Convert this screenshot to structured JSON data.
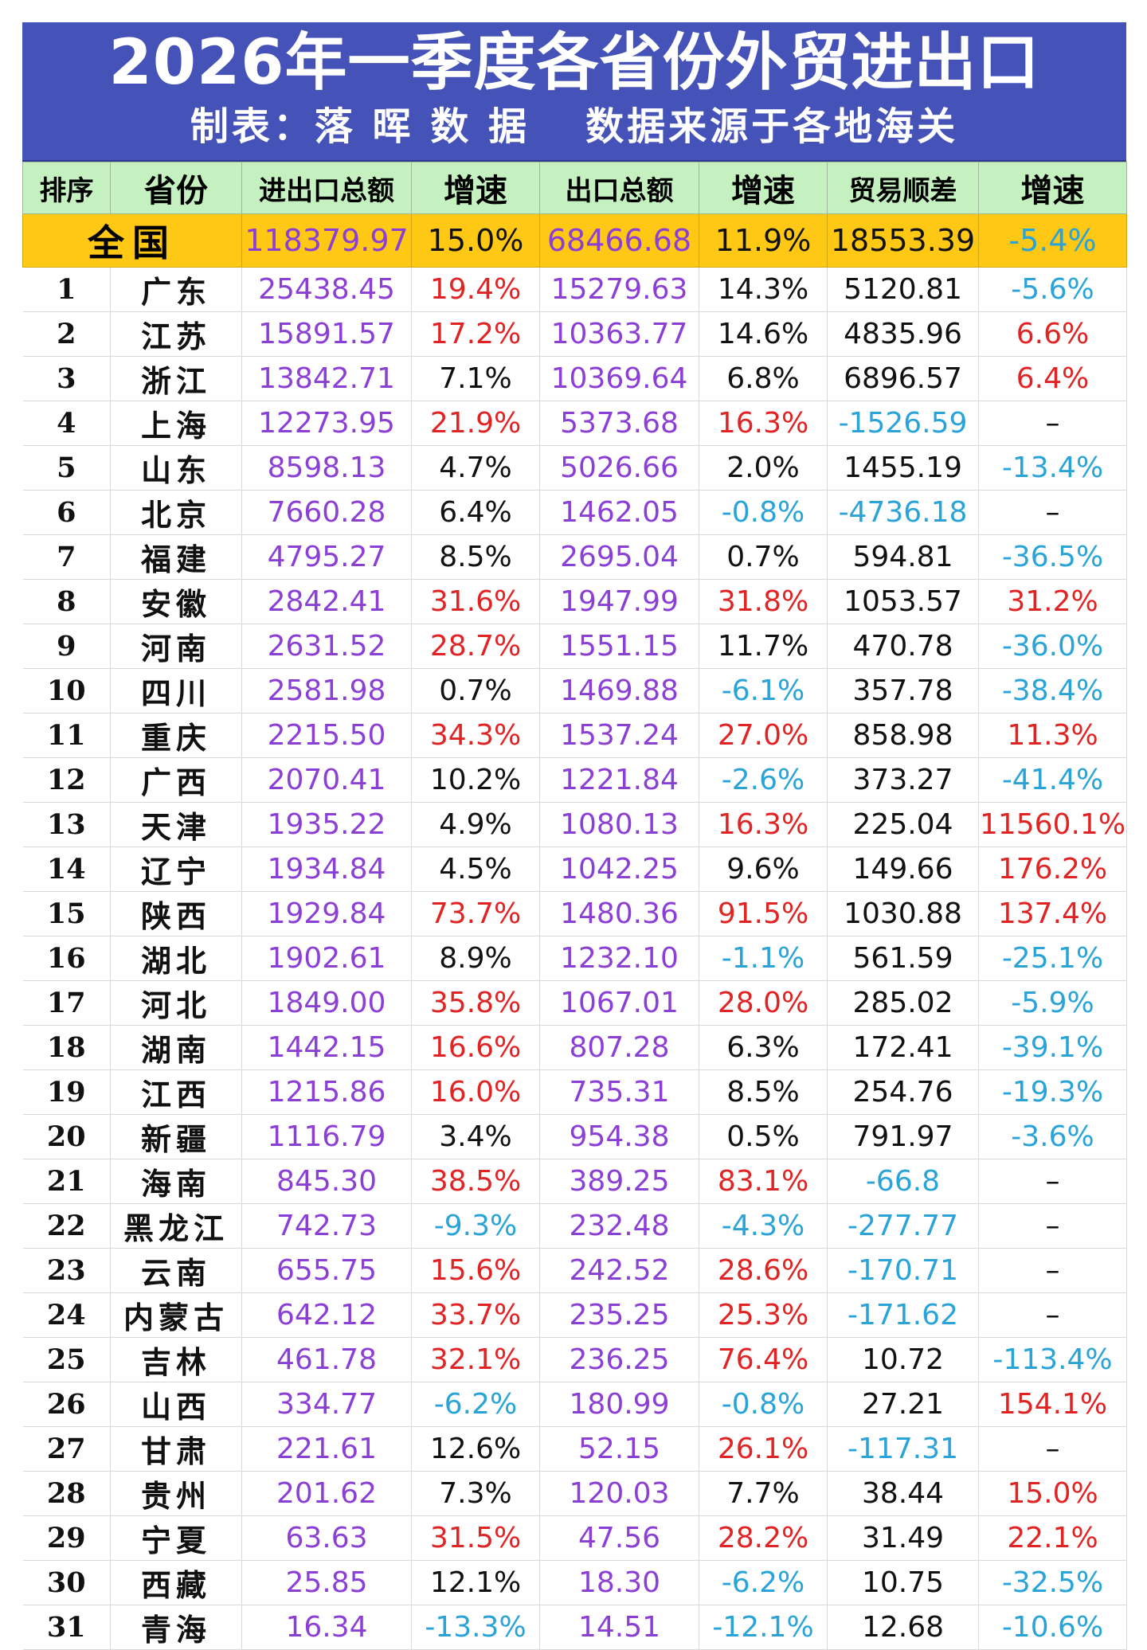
{
  "title": "2026年一季度各省份外贸进出口",
  "subtitle_left": "制表：落 晖 数 据",
  "subtitle_right": "数据来源于各地海关",
  "headers": [
    "排序",
    "省份",
    "进出口总额",
    "增速",
    "出口总额",
    "增速",
    "贸易顺差",
    "增速"
  ],
  "national": {
    "name": "全国",
    "total": "118379.97",
    "total_growth": "15.0%",
    "export": "68466.68",
    "export_growth": "11.9%",
    "surplus": "18553.39",
    "surplus_growth": "-5.4%"
  },
  "rows": [
    {
      "rank": "1",
      "name": "广东",
      "total": "25438.45",
      "tg": "19.4%",
      "exp": "15279.63",
      "eg": "14.3%",
      "sur": "5120.81",
      "sg": "-5.6%"
    },
    {
      "rank": "2",
      "name": "江苏",
      "total": "15891.57",
      "tg": "17.2%",
      "exp": "10363.77",
      "eg": "14.6%",
      "sur": "4835.96",
      "sg": "6.6%"
    },
    {
      "rank": "3",
      "name": "浙江",
      "total": "13842.71",
      "tg": "7.1%",
      "exp": "10369.64",
      "eg": "6.8%",
      "sur": "6896.57",
      "sg": "6.4%"
    },
    {
      "rank": "4",
      "name": "上海",
      "total": "12273.95",
      "tg": "21.9%",
      "exp": "5373.68",
      "eg": "16.3%",
      "sur": "-1526.59",
      "sg": "–"
    },
    {
      "rank": "5",
      "name": "山东",
      "total": "8598.13",
      "tg": "4.7%",
      "exp": "5026.66",
      "eg": "2.0%",
      "sur": "1455.19",
      "sg": "-13.4%"
    },
    {
      "rank": "6",
      "name": "北京",
      "total": "7660.28",
      "tg": "6.4%",
      "exp": "1462.05",
      "eg": "-0.8%",
      "sur": "-4736.18",
      "sg": "–"
    },
    {
      "rank": "7",
      "name": "福建",
      "total": "4795.27",
      "tg": "8.5%",
      "exp": "2695.04",
      "eg": "0.7%",
      "sur": "594.81",
      "sg": "-36.5%"
    },
    {
      "rank": "8",
      "name": "安徽",
      "total": "2842.41",
      "tg": "31.6%",
      "exp": "1947.99",
      "eg": "31.8%",
      "sur": "1053.57",
      "sg": "31.2%"
    },
    {
      "rank": "9",
      "name": "河南",
      "total": "2631.52",
      "tg": "28.7%",
      "exp": "1551.15",
      "eg": "11.7%",
      "sur": "470.78",
      "sg": "-36.0%"
    },
    {
      "rank": "10",
      "name": "四川",
      "total": "2581.98",
      "tg": "0.7%",
      "exp": "1469.88",
      "eg": "-6.1%",
      "sur": "357.78",
      "sg": "-38.4%"
    },
    {
      "rank": "11",
      "name": "重庆",
      "total": "2215.50",
      "tg": "34.3%",
      "exp": "1537.24",
      "eg": "27.0%",
      "sur": "858.98",
      "sg": "11.3%"
    },
    {
      "rank": "12",
      "name": "广西",
      "total": "2070.41",
      "tg": "10.2%",
      "exp": "1221.84",
      "eg": "-2.6%",
      "sur": "373.27",
      "sg": "-41.4%"
    },
    {
      "rank": "13",
      "name": "天津",
      "total": "1935.22",
      "tg": "4.9%",
      "exp": "1080.13",
      "eg": "16.3%",
      "sur": "225.04",
      "sg": "11560.1%"
    },
    {
      "rank": "14",
      "name": "辽宁",
      "total": "1934.84",
      "tg": "4.5%",
      "exp": "1042.25",
      "eg": "9.6%",
      "sur": "149.66",
      "sg": "176.2%"
    },
    {
      "rank": "15",
      "name": "陕西",
      "total": "1929.84",
      "tg": "73.7%",
      "exp": "1480.36",
      "eg": "91.5%",
      "sur": "1030.88",
      "sg": "137.4%"
    },
    {
      "rank": "16",
      "name": "湖北",
      "total": "1902.61",
      "tg": "8.9%",
      "exp": "1232.10",
      "eg": "-1.1%",
      "sur": "561.59",
      "sg": "-25.1%"
    },
    {
      "rank": "17",
      "name": "河北",
      "total": "1849.00",
      "tg": "35.8%",
      "exp": "1067.01",
      "eg": "28.0%",
      "sur": "285.02",
      "sg": "-5.9%"
    },
    {
      "rank": "18",
      "name": "湖南",
      "total": "1442.15",
      "tg": "16.6%",
      "exp": "807.28",
      "eg": "6.3%",
      "sur": "172.41",
      "sg": "-39.1%"
    },
    {
      "rank": "19",
      "name": "江西",
      "total": "1215.86",
      "tg": "16.0%",
      "exp": "735.31",
      "eg": "8.5%",
      "sur": "254.76",
      "sg": "-19.3%"
    },
    {
      "rank": "20",
      "name": "新疆",
      "total": "1116.79",
      "tg": "3.4%",
      "exp": "954.38",
      "eg": "0.5%",
      "sur": "791.97",
      "sg": "-3.6%"
    },
    {
      "rank": "21",
      "name": "海南",
      "total": "845.30",
      "tg": "38.5%",
      "exp": "389.25",
      "eg": "83.1%",
      "sur": "-66.8",
      "sg": "–"
    },
    {
      "rank": "22",
      "name": "黑龙江",
      "total": "742.73",
      "tg": "-9.3%",
      "exp": "232.48",
      "eg": "-4.3%",
      "sur": "-277.77",
      "sg": "–"
    },
    {
      "rank": "23",
      "name": "云南",
      "total": "655.75",
      "tg": "15.6%",
      "exp": "242.52",
      "eg": "28.6%",
      "sur": "-170.71",
      "sg": "–"
    },
    {
      "rank": "24",
      "name": "内蒙古",
      "total": "642.12",
      "tg": "33.7%",
      "exp": "235.25",
      "eg": "25.3%",
      "sur": "-171.62",
      "sg": "–"
    },
    {
      "rank": "25",
      "name": "吉林",
      "total": "461.78",
      "tg": "32.1%",
      "exp": "236.25",
      "eg": "76.4%",
      "sur": "10.72",
      "sg": "-113.4%"
    },
    {
      "rank": "26",
      "name": "山西",
      "total": "334.77",
      "tg": "-6.2%",
      "exp": "180.99",
      "eg": "-0.8%",
      "sur": "27.21",
      "sg": "154.1%"
    },
    {
      "rank": "27",
      "name": "甘肃",
      "total": "221.61",
      "tg": "12.6%",
      "exp": "52.15",
      "eg": "26.1%",
      "sur": "-117.31",
      "sg": "–"
    },
    {
      "rank": "28",
      "name": "贵州",
      "total": "201.62",
      "tg": "7.3%",
      "exp": "120.03",
      "eg": "7.7%",
      "sur": "38.44",
      "sg": "15.0%"
    },
    {
      "rank": "29",
      "name": "宁夏",
      "total": "63.63",
      "tg": "31.5%",
      "exp": "47.56",
      "eg": "28.2%",
      "sur": "31.49",
      "sg": "22.1%"
    },
    {
      "rank": "30",
      "name": "西藏",
      "total": "25.85",
      "tg": "12.1%",
      "exp": "18.30",
      "eg": "-6.2%",
      "sur": "10.75",
      "sg": "-32.5%"
    },
    {
      "rank": "31",
      "name": "青海",
      "total": "16.34",
      "tg": "-13.3%",
      "exp": "14.51",
      "eg": "-12.1%",
      "sur": "12.68",
      "sg": "-10.6%"
    }
  ],
  "colors": {
    "header_bg": "#4552b8",
    "column_header_bg": "#c5f0c0",
    "national_bg": "#ffc814",
    "purple": "#8b3fd4",
    "red": "#e02424",
    "blue": "#2aa4d8"
  }
}
